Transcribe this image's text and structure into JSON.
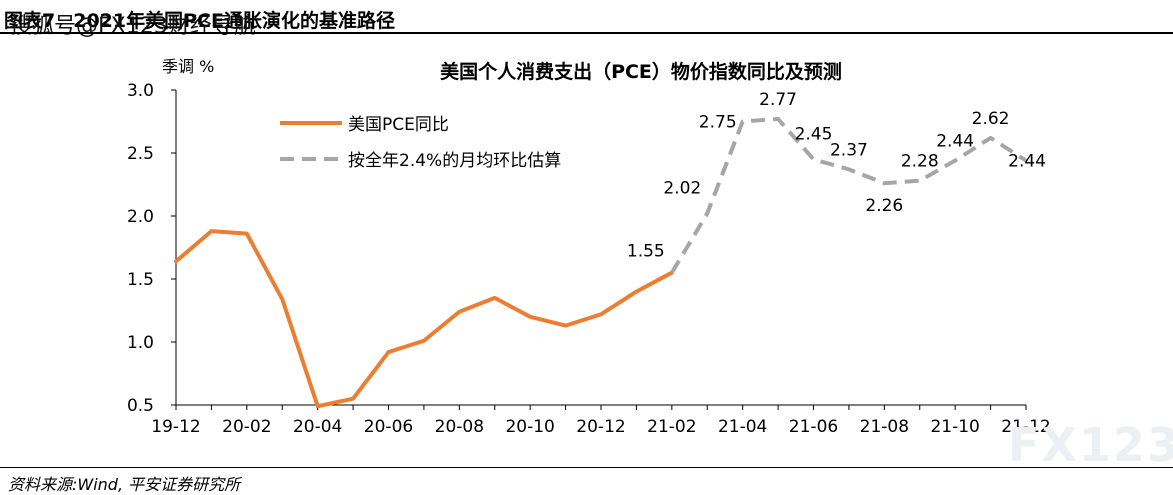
{
  "figure": {
    "number": "图表7",
    "title": "2021年美国PCE通胀演化的基准路径",
    "watermark": "搜狐号@FX123财经导航",
    "source": "资料来源:Wind, 平安证券研究所",
    "logo": "FX123"
  },
  "chart_data": {
    "type": "line",
    "title": "美国个人消费支出（PCE）物价指数同比及预测",
    "ylabel": "季调 %",
    "xlabel": "",
    "ylim": [
      0.5,
      3.0
    ],
    "yticks": [
      "0.5",
      "1.0",
      "1.5",
      "2.0",
      "2.5",
      "3.0"
    ],
    "x": [
      "19-12",
      "20-01",
      "20-02",
      "20-03",
      "20-04",
      "20-05",
      "20-06",
      "20-07",
      "20-08",
      "20-09",
      "20-10",
      "20-11",
      "20-12",
      "21-01",
      "21-02",
      "21-03",
      "21-04",
      "21-05",
      "21-06",
      "21-07",
      "21-08",
      "21-09",
      "21-10",
      "21-11",
      "21-12"
    ],
    "xticks": [
      "19-12",
      "20-02",
      "20-04",
      "20-06",
      "20-08",
      "20-10",
      "20-12",
      "21-02",
      "21-04",
      "21-06",
      "21-08",
      "21-10",
      "21-12"
    ],
    "grid": false,
    "legend_position": "top-left",
    "series": [
      {
        "name": "美国PCE同比",
        "color": "#ED7D31",
        "style": "solid",
        "x": [
          "19-12",
          "20-01",
          "20-02",
          "20-03",
          "20-04",
          "20-05",
          "20-06",
          "20-07",
          "20-08",
          "20-09",
          "20-10",
          "20-11",
          "20-12",
          "21-01",
          "21-02"
        ],
        "values": [
          1.64,
          1.88,
          1.86,
          1.34,
          0.49,
          0.55,
          0.92,
          1.01,
          1.24,
          1.35,
          1.2,
          1.13,
          1.22,
          1.4,
          1.55
        ]
      },
      {
        "name": "按全年2.4%的月均环比估算",
        "color": "#A6A6A6",
        "style": "dashed",
        "x": [
          "21-02",
          "21-03",
          "21-04",
          "21-05",
          "21-06",
          "21-07",
          "21-08",
          "21-09",
          "21-10",
          "21-11",
          "21-12"
        ],
        "values": [
          1.55,
          2.02,
          2.75,
          2.77,
          2.45,
          2.37,
          2.26,
          2.28,
          2.44,
          2.62,
          2.44
        ]
      }
    ],
    "data_labels": [
      {
        "x": "21-02",
        "text": "1.55",
        "pos": "above"
      },
      {
        "x": "21-03",
        "text": "2.02",
        "pos": "left"
      },
      {
        "x": "21-04",
        "text": "2.75",
        "pos": "left"
      },
      {
        "x": "21-05",
        "text": "2.77",
        "pos": "above"
      },
      {
        "x": "21-06",
        "text": "2.45",
        "pos": "above"
      },
      {
        "x": "21-07",
        "text": "2.37",
        "pos": "above"
      },
      {
        "x": "21-08",
        "text": "2.26",
        "pos": "below"
      },
      {
        "x": "21-09",
        "text": "2.28",
        "pos": "above"
      },
      {
        "x": "21-10",
        "text": "2.44",
        "pos": "above"
      },
      {
        "x": "21-11",
        "text": "2.62",
        "pos": "above"
      },
      {
        "x": "21-12",
        "text": "2.44",
        "pos": "right"
      }
    ]
  }
}
